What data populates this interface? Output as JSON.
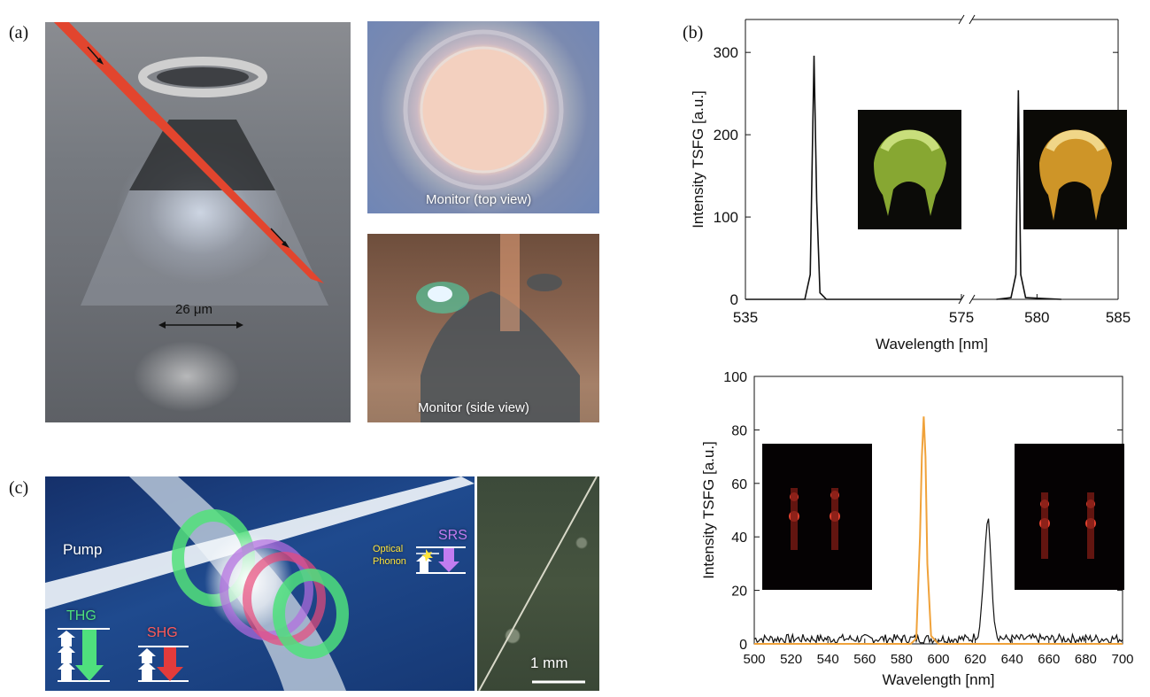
{
  "panel_a": {
    "label": "(a)",
    "main_scale": "26 μm",
    "top_caption": "Monitor (top view)",
    "side_caption": "Monitor (side view)"
  },
  "panel_b": {
    "label": "(b)"
  },
  "panel_c": {
    "label": "(c)",
    "pump": "Pump",
    "thg": "THG",
    "shg": "SHG",
    "srs": "SRS",
    "optical": "Optical",
    "phonon": "Phonon",
    "scale": "1 mm"
  },
  "colors": {
    "laser": "#e2452e",
    "orange_series": "#f0a23a",
    "black_series": "#111111",
    "thg": "#4fe07d",
    "shg": "#ff5a5a",
    "srs": "#c27cf0",
    "phonon": "#ffe43a"
  },
  "chart_data": [
    {
      "type": "line",
      "xlabel": "Wavelength [nm]",
      "ylabel": "Intensity TSFG [a.u.]",
      "ylim": [
        0,
        340
      ],
      "yticks": [
        0,
        100,
        200,
        300
      ],
      "broken_x_axis": true,
      "segments": [
        {
          "xlim": [
            535,
            575
          ],
          "xticks": [
            535,
            575
          ]
        },
        {
          "xlim": [
            576,
            585
          ],
          "xticks": [
            580,
            585
          ]
        }
      ],
      "series": [
        {
          "x": [
            535,
            546,
            547,
            547.7,
            548.2,
            548.8,
            550,
            575
          ],
          "y": [
            0,
            0,
            30,
            296,
            120,
            8,
            0,
            0
          ]
        },
        {
          "x": [
            577.5,
            578.4,
            578.7,
            578.85,
            579.0,
            579.3,
            581.5
          ],
          "y": [
            0,
            2,
            30,
            254,
            30,
            2,
            0
          ]
        }
      ]
    },
    {
      "type": "line",
      "xlabel": "Wavelength [nm]",
      "ylabel": "Intensity TSFG [a.u.]",
      "xlim": [
        500,
        700
      ],
      "ylim": [
        0,
        100
      ],
      "xticks": [
        500,
        520,
        540,
        560,
        580,
        600,
        620,
        640,
        660,
        680,
        700
      ],
      "yticks": [
        0,
        20,
        40,
        60,
        80,
        100
      ],
      "series": [
        {
          "x": [
            500,
            585,
            588,
            590,
            591,
            592,
            593,
            594,
            596,
            600,
            700
          ],
          "y": [
            0,
            0,
            2,
            40,
            70,
            85,
            70,
            30,
            3,
            0,
            0
          ]
        },
        {
          "x": [
            500,
            618,
            622,
            624,
            626,
            627,
            628,
            630,
            632,
            636,
            700
          ],
          "y": [
            1,
            1,
            3,
            20,
            42,
            49,
            38,
            10,
            2,
            1,
            1
          ]
        }
      ]
    }
  ]
}
